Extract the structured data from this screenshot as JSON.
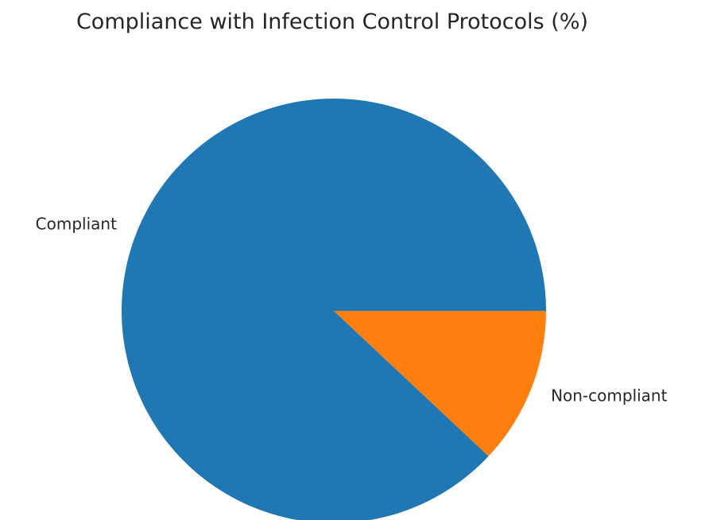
{
  "chart_data": {
    "type": "pie",
    "title": "Compliance with Infection Control Protocols (%)",
    "labels": [
      "Compliant",
      "Non-compliant"
    ],
    "values": [
      88,
      12
    ],
    "colors": [
      "#1f77b4",
      "#ff7f0e"
    ],
    "start_angle_deg": 0,
    "direction": "counterclockwise"
  }
}
